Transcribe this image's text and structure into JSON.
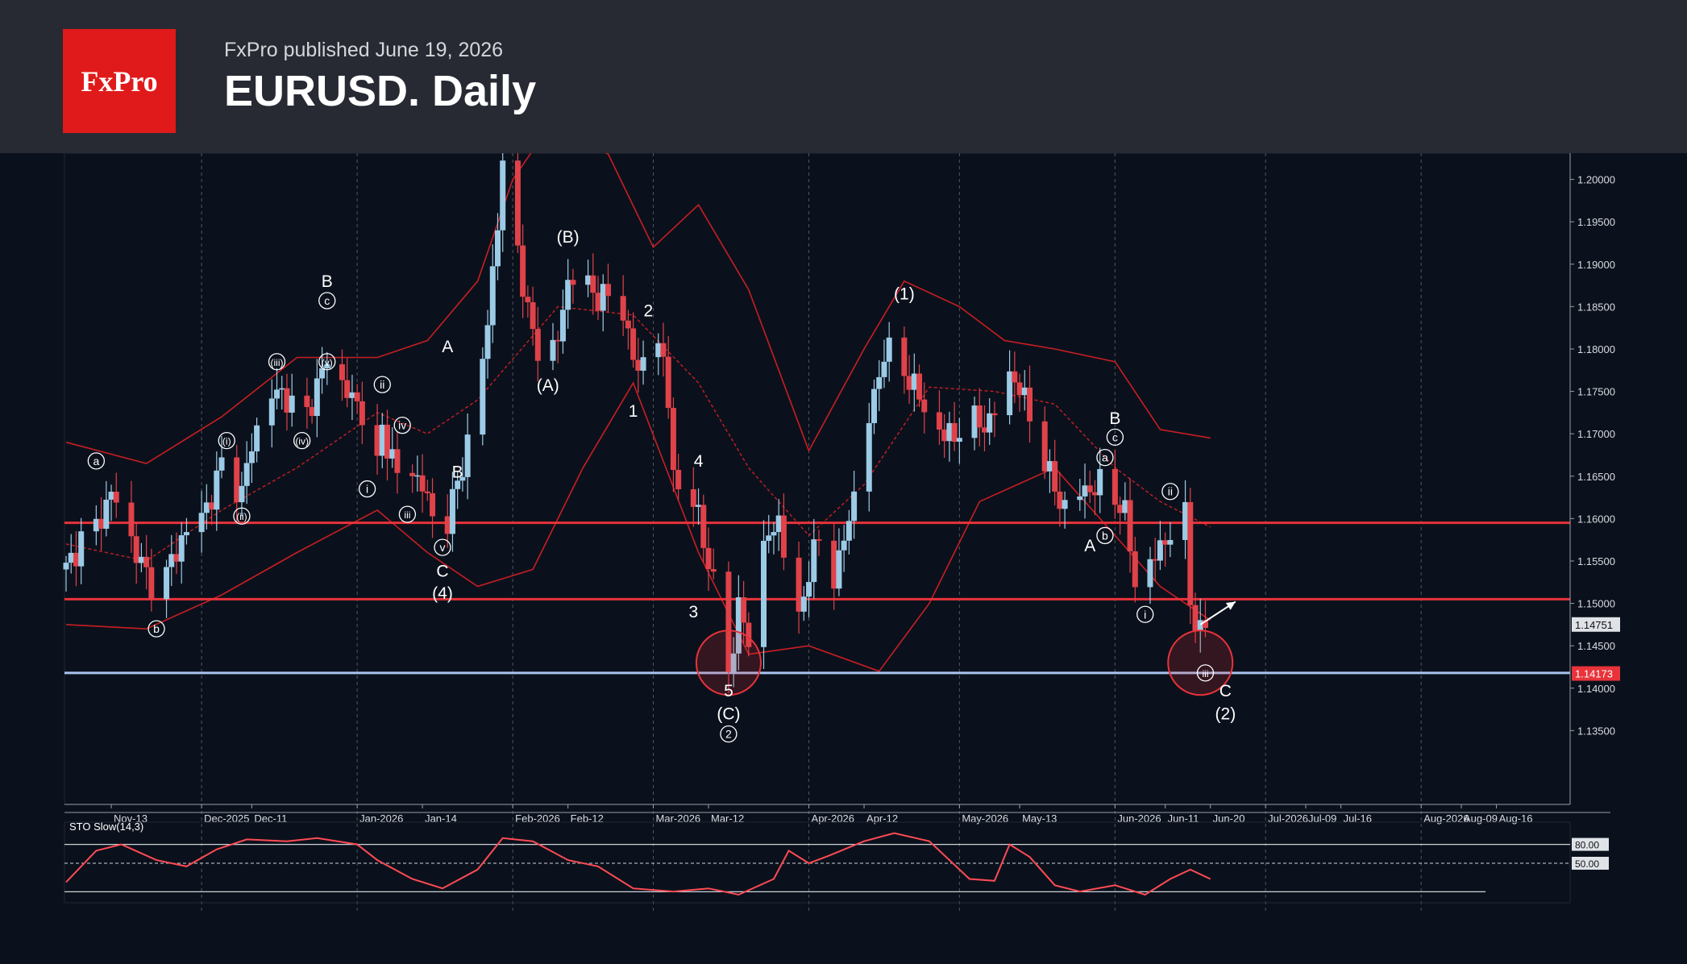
{
  "header": {
    "logo_text": "FxPro",
    "subtitle": "FxPro published June 19, 2026",
    "title": "EURUSD. Daily"
  },
  "colors": {
    "background": "#0b111c",
    "header": "#272a33",
    "logo": "#e01a1a",
    "bull_candle": "#9ccbe6",
    "bear_candle": "#e0424a",
    "bollinger": "#c81e23",
    "resistance_line": "#e8333a",
    "support_line": "#a8c4f0",
    "stochastic": "#ff4b55"
  },
  "chart_data": {
    "type": "candlestick",
    "symbol": "EURUSD",
    "timeframe": "Daily",
    "ylim": [
      1.13,
      1.203
    ],
    "y_ticks": [
      "1.20000",
      "1.19500",
      "1.19000",
      "1.18500",
      "1.18000",
      "1.17500",
      "1.17000",
      "1.16500",
      "1.16000",
      "1.15500",
      "1.15000",
      "1.14500",
      "1.14000",
      "1.13500"
    ],
    "x_ticks": [
      {
        "label": "Nov-13",
        "date": "2025-11-13"
      },
      {
        "label": "Dec-2025",
        "date": "2025-12-01",
        "major": true
      },
      {
        "label": "Dec-11",
        "date": "2025-12-11"
      },
      {
        "label": "Jan-2026",
        "date": "2026-01-01",
        "major": true
      },
      {
        "label": "Jan-14",
        "date": "2026-01-14"
      },
      {
        "label": "Feb-2026",
        "date": "2026-02-01",
        "major": true
      },
      {
        "label": "Feb-12",
        "date": "2026-02-12"
      },
      {
        "label": "Mar-2026",
        "date": "2026-03-01",
        "major": true
      },
      {
        "label": "Mar-12",
        "date": "2026-03-12"
      },
      {
        "label": "Apr-2026",
        "date": "2026-04-01",
        "major": true
      },
      {
        "label": "Apr-12",
        "date": "2026-04-12"
      },
      {
        "label": "May-2026",
        "date": "2026-05-01",
        "major": true
      },
      {
        "label": "May-13",
        "date": "2026-05-13"
      },
      {
        "label": "Jun-2026",
        "date": "2026-06-01",
        "major": true
      },
      {
        "label": "Jun-11",
        "date": "2026-06-11"
      },
      {
        "label": "Jun-20",
        "date": "2026-06-20"
      },
      {
        "label": "Jul-2026",
        "date": "2026-07-01",
        "major": true
      },
      {
        "label": "Jul-09",
        "date": "2026-07-09"
      },
      {
        "label": "Jul-16",
        "date": "2026-07-16"
      },
      {
        "label": "Aug-2026",
        "date": "2026-08-01",
        "major": true
      },
      {
        "label": "Aug-09",
        "date": "2026-08-09"
      },
      {
        "label": "Aug-16",
        "date": "2026-08-16"
      }
    ],
    "close_path": [
      [
        "2025-11-04",
        1.154
      ],
      [
        "2025-11-07",
        1.1575
      ],
      [
        "2025-11-10",
        1.159
      ],
      [
        "2025-11-13",
        1.163
      ],
      [
        "2025-11-15",
        1.161
      ],
      [
        "2025-11-17",
        1.1575
      ],
      [
        "2025-11-19",
        1.1545
      ],
      [
        "2025-11-21",
        1.1525
      ],
      [
        "2025-11-23",
        1.1515
      ],
      [
        "2025-11-25",
        1.155
      ],
      [
        "2025-11-27",
        1.1575
      ],
      [
        "2025-11-29",
        1.1595
      ],
      [
        "2025-12-01",
        1.1605
      ],
      [
        "2025-12-03",
        1.1625
      ],
      [
        "2025-12-05",
        1.1665
      ],
      [
        "2025-12-07",
        1.165
      ],
      [
        "2025-12-09",
        1.1628
      ],
      [
        "2025-12-11",
        1.169
      ],
      [
        "2025-12-13",
        1.172
      ],
      [
        "2025-12-15",
        1.1745
      ],
      [
        "2025-12-17",
        1.175
      ],
      [
        "2025-12-19",
        1.1732
      ],
      [
        "2025-12-21",
        1.171
      ],
      [
        "2025-12-24",
        1.1755
      ],
      [
        "2025-12-26",
        1.179
      ],
      [
        "2025-12-28",
        1.177
      ],
      [
        "2025-12-30",
        1.1748
      ],
      [
        "2026-01-01",
        1.1735
      ],
      [
        "2026-01-03",
        1.172
      ],
      [
        "2026-01-05",
        1.166
      ],
      [
        "2026-01-06",
        1.1705
      ],
      [
        "2026-01-08",
        1.1672
      ],
      [
        "2026-01-10",
        1.163
      ],
      [
        "2026-01-12",
        1.1655
      ],
      [
        "2026-01-14",
        1.164
      ],
      [
        "2026-01-16",
        1.16
      ],
      [
        "2026-01-18",
        1.1585
      ],
      [
        "2026-01-19",
        1.16
      ],
      [
        "2026-01-21",
        1.164
      ],
      [
        "2026-01-23",
        1.169
      ],
      [
        "2026-01-25",
        1.1745
      ],
      [
        "2026-01-27",
        1.183
      ],
      [
        "2026-01-28",
        1.1895
      ],
      [
        "2026-01-29",
        1.195
      ],
      [
        "2026-01-30",
        1.201
      ],
      [
        "2026-02-01",
        1.197
      ],
      [
        "2026-02-02",
        1.192
      ],
      [
        "2026-02-04",
        1.184
      ],
      [
        "2026-02-06",
        1.18
      ],
      [
        "2026-02-08",
        1.1795
      ],
      [
        "2026-02-10",
        1.181
      ],
      [
        "2026-02-12",
        1.188
      ],
      [
        "2026-02-14",
        1.1895
      ],
      [
        "2026-02-15",
        1.188
      ],
      [
        "2026-02-17",
        1.1865
      ],
      [
        "2026-02-20",
        1.186
      ],
      [
        "2026-02-23",
        1.1845
      ],
      [
        "2026-02-25",
        1.179
      ],
      [
        "2026-02-26",
        1.177
      ],
      [
        "2026-02-27",
        1.179
      ],
      [
        "2026-03-01",
        1.18
      ],
      [
        "2026-03-02",
        1.182
      ],
      [
        "2026-03-04",
        1.173
      ],
      [
        "2026-03-06",
        1.162
      ],
      [
        "2026-03-08",
        1.16
      ],
      [
        "2026-03-10",
        1.1625
      ],
      [
        "2026-03-11",
        1.156
      ],
      [
        "2026-03-13",
        1.153
      ],
      [
        "2026-03-15",
        1.15
      ],
      [
        "2026-03-16",
        1.142
      ],
      [
        "2026-03-18",
        1.149
      ],
      [
        "2026-03-20",
        1.1465
      ],
      [
        "2026-03-22",
        1.154
      ],
      [
        "2026-03-24",
        1.158
      ],
      [
        "2026-03-26",
        1.16
      ],
      [
        "2026-03-27",
        1.156
      ],
      [
        "2026-03-29",
        1.153
      ],
      [
        "2026-03-30",
        1.148
      ],
      [
        "2026-04-01",
        1.154
      ],
      [
        "2026-04-03",
        1.1575
      ],
      [
        "2026-04-05",
        1.1515
      ],
      [
        "2026-04-07",
        1.155
      ],
      [
        "2026-04-09",
        1.16
      ],
      [
        "2026-04-11",
        1.166
      ],
      [
        "2026-04-12",
        1.17
      ],
      [
        "2026-04-14",
        1.174
      ],
      [
        "2026-04-16",
        1.18
      ],
      [
        "2026-04-18",
        1.179
      ],
      [
        "2026-04-20",
        1.177
      ],
      [
        "2026-04-22",
        1.176
      ],
      [
        "2026-04-24",
        1.1725
      ],
      [
        "2026-04-26",
        1.171
      ],
      [
        "2026-04-28",
        1.17
      ],
      [
        "2026-04-30",
        1.1695
      ],
      [
        "2026-05-01",
        1.171
      ],
      [
        "2026-05-03",
        1.172
      ],
      [
        "2026-05-05",
        1.171
      ],
      [
        "2026-05-07",
        1.1715
      ],
      [
        "2026-05-09",
        1.1735
      ],
      [
        "2026-05-11",
        1.177
      ],
      [
        "2026-05-13",
        1.1755
      ],
      [
        "2026-05-15",
        1.172
      ],
      [
        "2026-05-17",
        1.169
      ],
      [
        "2026-05-19",
        1.165
      ],
      [
        "2026-05-21",
        1.162
      ],
      [
        "2026-05-23",
        1.161
      ],
      [
        "2026-05-25",
        1.163
      ],
      [
        "2026-05-27",
        1.1635
      ],
      [
        "2026-05-29",
        1.164
      ],
      [
        "2026-05-31",
        1.1625
      ],
      [
        "2026-06-02",
        1.162
      ],
      [
        "2026-06-03",
        1.1605
      ],
      [
        "2026-06-05",
        1.1525
      ],
      [
        "2026-06-07",
        1.154
      ],
      [
        "2026-06-09",
        1.1555
      ],
      [
        "2026-06-11",
        1.1575
      ],
      [
        "2026-06-13",
        1.1595
      ],
      [
        "2026-06-15",
        1.16
      ],
      [
        "2026-06-16",
        1.1505
      ],
      [
        "2026-06-17",
        1.148
      ],
      [
        "2026-06-18",
        1.1465
      ],
      [
        "2026-06-19",
        1.1475
      ]
    ],
    "bollinger_bands": {
      "upper": [
        [
          "2025-11-04",
          1.169
        ],
        [
          "2025-11-20",
          1.1665
        ],
        [
          "2025-12-05",
          1.172
        ],
        [
          "2025-12-20",
          1.179
        ],
        [
          "2026-01-05",
          1.179
        ],
        [
          "2026-01-15",
          1.181
        ],
        [
          "2026-01-25",
          1.188
        ],
        [
          "2026-02-01",
          1.2
        ],
        [
          "2026-02-08",
          1.206
        ],
        [
          "2026-02-20",
          1.203
        ],
        [
          "2026-03-01",
          1.192
        ],
        [
          "2026-03-10",
          1.197
        ],
        [
          "2026-03-20",
          1.187
        ],
        [
          "2026-04-01",
          1.168
        ],
        [
          "2026-04-12",
          1.18
        ],
        [
          "2026-04-20",
          1.188
        ],
        [
          "2026-05-01",
          1.185
        ],
        [
          "2026-05-10",
          1.181
        ],
        [
          "2026-05-20",
          1.18
        ],
        [
          "2026-06-01",
          1.1785
        ],
        [
          "2026-06-10",
          1.1705
        ],
        [
          "2026-06-20",
          1.1695
        ]
      ],
      "middle": [
        [
          "2025-11-04",
          1.157
        ],
        [
          "2025-11-20",
          1.155
        ],
        [
          "2025-12-05",
          1.161
        ],
        [
          "2025-12-20",
          1.166
        ],
        [
          "2026-01-05",
          1.1725
        ],
        [
          "2026-01-15",
          1.17
        ],
        [
          "2026-01-25",
          1.174
        ],
        [
          "2026-02-10",
          1.185
        ],
        [
          "2026-02-25",
          1.184
        ],
        [
          "2026-03-10",
          1.176
        ],
        [
          "2026-03-20",
          1.166
        ],
        [
          "2026-04-01",
          1.158
        ],
        [
          "2026-04-12",
          1.164
        ],
        [
          "2026-04-25",
          1.1755
        ],
        [
          "2026-05-08",
          1.175
        ],
        [
          "2026-05-20",
          1.1735
        ],
        [
          "2026-06-01",
          1.166
        ],
        [
          "2026-06-10",
          1.162
        ],
        [
          "2026-06-20",
          1.159
        ]
      ],
      "lower": [
        [
          "2025-11-04",
          1.1475
        ],
        [
          "2025-11-20",
          1.147
        ],
        [
          "2025-12-05",
          1.151
        ],
        [
          "2025-12-20",
          1.156
        ],
        [
          "2026-01-05",
          1.161
        ],
        [
          "2026-01-15",
          1.156
        ],
        [
          "2026-01-25",
          1.152
        ],
        [
          "2026-02-05",
          1.154
        ],
        [
          "2026-02-15",
          1.166
        ],
        [
          "2026-02-25",
          1.176
        ],
        [
          "2026-03-10",
          1.156
        ],
        [
          "2026-03-20",
          1.144
        ],
        [
          "2026-04-01",
          1.145
        ],
        [
          "2026-04-15",
          1.142
        ],
        [
          "2026-04-25",
          1.15
        ],
        [
          "2026-05-05",
          1.162
        ],
        [
          "2026-05-20",
          1.166
        ],
        [
          "2026-06-01",
          1.158
        ],
        [
          "2026-06-10",
          1.152
        ],
        [
          "2026-06-20",
          1.148
        ]
      ]
    },
    "horizontal_lines": [
      {
        "name": "resistance",
        "value": 1.1595,
        "color": "#e8333a"
      },
      {
        "name": "resistance",
        "value": 1.1505,
        "color": "#e8333a"
      },
      {
        "name": "support",
        "value": 1.1418,
        "color": "#a8c4f0"
      }
    ],
    "price_labels": [
      {
        "value": 1.14751,
        "text": "1.14751",
        "style": "light"
      },
      {
        "value": 1.14173,
        "text": "1.14173",
        "style": "red"
      }
    ],
    "annotations": [
      {
        "text": "a",
        "date": "2025-11-10",
        "y": 1.1668,
        "circled": true
      },
      {
        "text": "b",
        "date": "2025-11-22",
        "y": 1.147,
        "circled": true
      },
      {
        "text": "(i)",
        "date": "2025-12-06",
        "y": 1.1692,
        "circled": true
      },
      {
        "text": "(ii)",
        "date": "2025-12-09",
        "y": 1.1603,
        "circled": true
      },
      {
        "text": "(iii)",
        "date": "2025-12-16",
        "y": 1.1785,
        "circled": true
      },
      {
        "text": "(iv)",
        "date": "2025-12-21",
        "y": 1.1692,
        "circled": true
      },
      {
        "text": "B",
        "date": "2025-12-26",
        "y": 1.188
      },
      {
        "text": "c",
        "date": "2025-12-26",
        "y": 1.1857,
        "circled": true
      },
      {
        "text": "(v)",
        "date": "2025-12-26",
        "y": 1.1785,
        "circled": true
      },
      {
        "text": "ii",
        "date": "2026-01-06",
        "y": 1.1758,
        "circled": true
      },
      {
        "text": "i",
        "date": "2026-01-03",
        "y": 1.1635,
        "circled": true
      },
      {
        "text": "iv",
        "date": "2026-01-10",
        "y": 1.171,
        "circled": true
      },
      {
        "text": "iii",
        "date": "2026-01-11",
        "y": 1.1605,
        "circled": true
      },
      {
        "text": "v",
        "date": "2026-01-18",
        "y": 1.1566,
        "circled": true
      },
      {
        "text": "C",
        "date": "2026-01-18",
        "y": 1.1538
      },
      {
        "text": "(4)",
        "date": "2026-01-18",
        "y": 1.1512
      },
      {
        "text": "A",
        "date": "2026-01-19",
        "y": 1.1803
      },
      {
        "text": "B",
        "date": "2026-01-21",
        "y": 1.1655
      },
      {
        "text": "(B)",
        "date": "2026-02-12",
        "y": 1.1932
      },
      {
        "text": "(A)",
        "date": "2026-02-08",
        "y": 1.1757
      },
      {
        "text": "1",
        "date": "2026-02-25",
        "y": 1.1727
      },
      {
        "text": "2",
        "date": "2026-02-28",
        "y": 1.1845
      },
      {
        "text": "4",
        "date": "2026-03-10",
        "y": 1.1668
      },
      {
        "text": "3",
        "date": "2026-03-09",
        "y": 1.149
      },
      {
        "text": "5",
        "date": "2026-03-16",
        "y": 1.1397
      },
      {
        "text": "(C)",
        "date": "2026-03-16",
        "y": 1.137
      },
      {
        "text": "2",
        "date": "2026-03-16",
        "y": 1.1346,
        "circled": true
      },
      {
        "text": "(1)",
        "date": "2026-04-20",
        "y": 1.1865
      },
      {
        "text": "a",
        "date": "2026-05-30",
        "y": 1.1672,
        "circled": true
      },
      {
        "text": "B",
        "date": "2026-06-01",
        "y": 1.1718
      },
      {
        "text": "c",
        "date": "2026-06-01",
        "y": 1.1696,
        "circled": true
      },
      {
        "text": "b",
        "date": "2026-05-30",
        "y": 1.158,
        "circled": true
      },
      {
        "text": "A",
        "date": "2026-05-27",
        "y": 1.1568
      },
      {
        "text": "i",
        "date": "2026-06-07",
        "y": 1.1487,
        "circled": true
      },
      {
        "text": "ii",
        "date": "2026-06-12",
        "y": 1.1632,
        "circled": true
      },
      {
        "text": "iii",
        "date": "2026-06-19",
        "y": 1.1418,
        "circled": true
      },
      {
        "text": "C",
        "date": "2026-06-23",
        "y": 1.1397
      },
      {
        "text": "(2)",
        "date": "2026-06-23",
        "y": 1.137
      }
    ],
    "highlight_circles": [
      {
        "date": "2026-03-16",
        "y": 1.143
      },
      {
        "date": "2026-06-18",
        "y": 1.143
      }
    ],
    "arrow": {
      "from": [
        "2026-06-18",
        1.1475
      ],
      "to": [
        "2026-06-25",
        1.1502
      ]
    }
  },
  "stochastic": {
    "label": "STO Slow(14,3)",
    "levels": [
      "80.00",
      "50.00"
    ],
    "values": [
      [
        "2025-11-04",
        20
      ],
      [
        "2025-11-10",
        70
      ],
      [
        "2025-11-15",
        80
      ],
      [
        "2025-11-22",
        55
      ],
      [
        "2025-11-28",
        45
      ],
      [
        "2025-12-04",
        72
      ],
      [
        "2025-12-10",
        88
      ],
      [
        "2025-12-18",
        85
      ],
      [
        "2025-12-24",
        90
      ],
      [
        "2026-01-01",
        80
      ],
      [
        "2026-01-05",
        55
      ],
      [
        "2026-01-12",
        25
      ],
      [
        "2026-01-18",
        10
      ],
      [
        "2026-01-25",
        40
      ],
      [
        "2026-01-30",
        90
      ],
      [
        "2026-02-05",
        85
      ],
      [
        "2026-02-12",
        55
      ],
      [
        "2026-02-18",
        45
      ],
      [
        "2026-02-25",
        10
      ],
      [
        "2026-03-05",
        5
      ],
      [
        "2026-03-12",
        10
      ],
      [
        "2026-03-18",
        0
      ],
      [
        "2026-03-25",
        25
      ],
      [
        "2026-03-28",
        70
      ],
      [
        "2026-04-01",
        50
      ],
      [
        "2026-04-05",
        62
      ],
      [
        "2026-04-12",
        85
      ],
      [
        "2026-04-18",
        98
      ],
      [
        "2026-04-25",
        85
      ],
      [
        "2026-05-03",
        25
      ],
      [
        "2026-05-08",
        22
      ],
      [
        "2026-05-11",
        80
      ],
      [
        "2026-05-15",
        60
      ],
      [
        "2026-05-20",
        15
      ],
      [
        "2026-05-25",
        5
      ],
      [
        "2026-06-01",
        15
      ],
      [
        "2026-06-07",
        0
      ],
      [
        "2026-06-12",
        25
      ],
      [
        "2026-06-16",
        40
      ],
      [
        "2026-06-20",
        25
      ]
    ]
  }
}
